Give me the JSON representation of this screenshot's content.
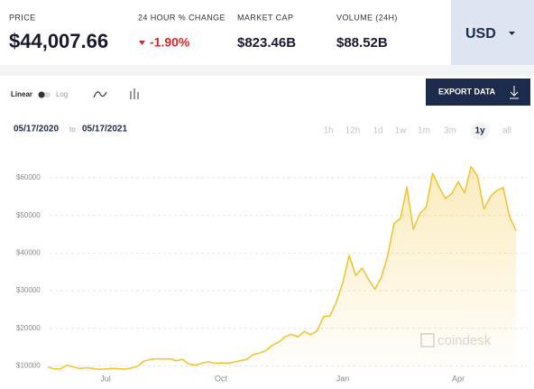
{
  "header": {
    "price_label": "PRICE",
    "price": "$44,007.66",
    "change_label": "24 HOUR % CHANGE",
    "change": "-1.90%",
    "market_cap_label": "MARKET CAP",
    "market_cap": "$823.46B",
    "volume_label": "VOLUME (24H)",
    "volume": "$88.52B",
    "currency": "USD"
  },
  "controls": {
    "scale_options": [
      "Linear",
      "Log"
    ],
    "export": "EXPORT DATA",
    "date_from": "05/17/2020",
    "date_sep": "to",
    "date_to": "05/17/2021",
    "ranges": [
      "1h",
      "12h",
      "1d",
      "1w",
      "1m",
      "3m",
      "1y",
      "all"
    ],
    "active_range": "1y"
  },
  "chart_data": {
    "type": "area",
    "color": "#f2c12e",
    "grid": true,
    "watermark": "coindesk",
    "categories": [
      null,
      null,
      null,
      null,
      null,
      null,
      null,
      null,
      null,
      "Jul",
      null,
      null,
      null,
      null,
      null,
      null,
      null,
      null,
      null,
      null,
      null,
      null,
      null,
      null,
      null,
      null,
      null,
      "Oct",
      null,
      null,
      null,
      null,
      null,
      null,
      null,
      null,
      null,
      null,
      null,
      null,
      null,
      null,
      null,
      null,
      null,
      null,
      "Jan",
      null,
      null,
      null,
      null,
      null,
      null,
      null,
      null,
      null,
      null,
      null,
      null,
      null,
      null,
      null,
      null,
      null,
      "Apr",
      null,
      null,
      null,
      null,
      null,
      null,
      null,
      null,
      null
    ],
    "values": [
      9700,
      9200,
      9200,
      10200,
      9700,
      9300,
      9500,
      9300,
      9100,
      9200,
      9300,
      9250,
      9150,
      9400,
      9900,
      11300,
      11700,
      11900,
      11800,
      11900,
      11400,
      11700,
      10500,
      10200,
      10700,
      11100,
      10700,
      10800,
      10700,
      11000,
      11400,
      11700,
      13000,
      13400,
      14000,
      15500,
      16300,
      17800,
      18400,
      17700,
      19200,
      18300,
      19300,
      23100,
      23300,
      27000,
      32100,
      39400,
      34000,
      36000,
      33000,
      30400,
      33500,
      39300,
      47900,
      49200,
      57500,
      46300,
      50500,
      52200,
      61200,
      57600,
      54500,
      55800,
      59000,
      56000,
      63000,
      60500,
      51700,
      55000,
      56600,
      57400,
      49700,
      46000
    ],
    "ylim": [
      6500,
      66000
    ],
    "yticks": [
      {
        "value": 10000,
        "label": "$10000"
      },
      {
        "value": 20000,
        "label": "$20000"
      },
      {
        "value": 30000,
        "label": "$30000"
      },
      {
        "value": 40000,
        "label": "$40000"
      },
      {
        "value": 50000,
        "label": "$50000"
      },
      {
        "value": 60000,
        "label": "$60000"
      }
    ]
  }
}
